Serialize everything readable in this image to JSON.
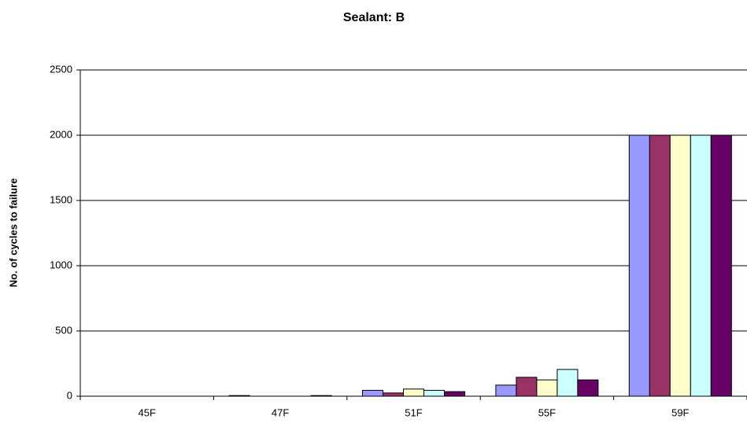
{
  "chart_data": {
    "type": "bar",
    "title": "Sealant: B",
    "y_label": "No. of cycles to failure",
    "categories": [
      "45F",
      "47F",
      "51F",
      "55F",
      "59F"
    ],
    "series": [
      {
        "color": "#9999ff",
        "values": [
          0,
          5,
          45,
          85,
          2000
        ]
      },
      {
        "color": "#993366",
        "values": [
          0,
          0,
          25,
          145,
          2000
        ]
      },
      {
        "color": "#ffffcc",
        "values": [
          0,
          0,
          55,
          125,
          2000
        ]
      },
      {
        "color": "#ccffff",
        "values": [
          0,
          0,
          45,
          205,
          2000
        ]
      },
      {
        "color": "#660066",
        "values": [
          0,
          5,
          35,
          125,
          2000
        ]
      }
    ],
    "ylim": [
      0,
      2500
    ],
    "yticks": [
      0,
      500,
      1000,
      1500,
      2000,
      2500
    ],
    "grid": true
  }
}
